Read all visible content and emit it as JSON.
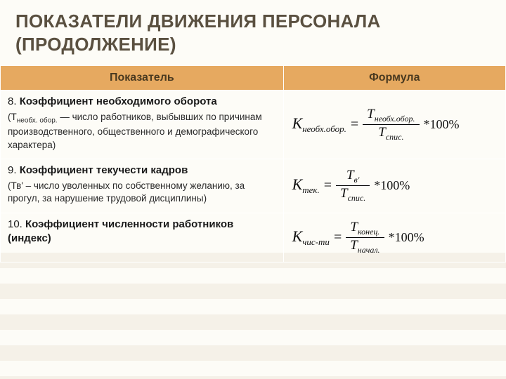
{
  "title": "ПОКАЗАТЕЛИ ДВИЖЕНИЯ ПЕРСОНАЛА (ПРОДОЛЖЕНИЕ)",
  "headers": {
    "col1": "Показатель",
    "col2": "Формула"
  },
  "rows": [
    {
      "num": "8.",
      "name": "Коэффициент необходимого оборота",
      "note_pre": "(Т",
      "note_sub": "необх. обор.",
      "note_post": "— число работников, выбывших по причинам производственного, общественного и демографического характера)",
      "f": {
        "K": "К",
        "Ksub": "необх.обор.",
        "num_T": "Т",
        "num_sub": "необх.обор.",
        "den_T": "Т",
        "den_sub": "спис.",
        "tail": "*100%"
      }
    },
    {
      "num": "9.",
      "name": "Коэффициент текучести кадров",
      "note_pre": "(Тв' – число уволенных по собственному желанию, за прогул, за нарушение трудовой дисциплины)",
      "note_sub": "",
      "note_post": "",
      "f": {
        "K": "К",
        "Ksub": "тек.",
        "num_T": "Т",
        "num_sub": "в'",
        "den_T": "Т",
        "den_sub": "спис.",
        "tail": "*100%"
      }
    },
    {
      "num": "10.",
      "name": "Коэффициент численности работников (индекс)",
      "note_pre": "",
      "note_sub": "",
      "note_post": "",
      "f": {
        "K": "К",
        "Ksub": "чис-ти",
        "num_T": "Т",
        "num_sub": "конец.",
        "den_T": "Т",
        "den_sub": "начал.",
        "tail": "*100%"
      }
    }
  ]
}
